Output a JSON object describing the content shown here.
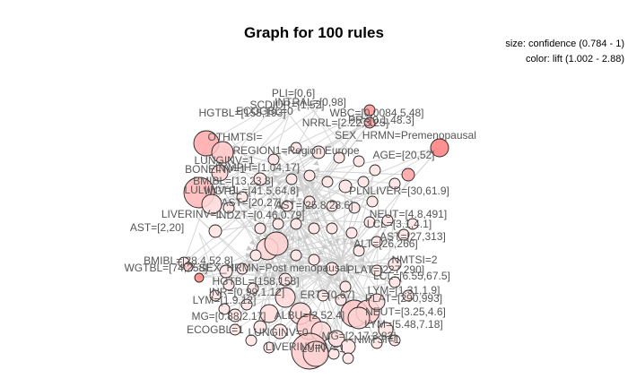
{
  "chart_data": {
    "type": "graph",
    "title": "Graph for 100 rules",
    "legend": {
      "size": "size: confidence (0.784 - 1)",
      "color": "color: lift (1.002 - 2.88)"
    },
    "items": [
      "PLI=[0,6]",
      "SCDIUR=[1,52]",
      "HGTBL=[158,193]",
      "INTRAL=[0,98]",
      "ECOGBL=0",
      "WBC=[0.0084,5.48]",
      "PR=[0.1,48.3]",
      "NRRL=[2.22,3.25]",
      "OTHMTSI=",
      "SEX_HRMN=Premenopausal",
      "REGION1=Region Europe",
      "LUNGINV=1",
      "BONEINV=1",
      "LYMPH=[1.04,17]",
      "AGE=[20,52]",
      "BMIBL=[13,23.8]",
      "LULIINV=1",
      "WGTBL=[41.5,64.8]",
      "PLNLIVER=[30,61.9]",
      "AST=[20,27]",
      "AST=[25.8,28.6]",
      "LIVERINV=1",
      "NEUT=[4.8,491]",
      "INDZT=[0.46,0.79]",
      "LCL=[3.1,4.1]",
      "AST=[27,313]",
      "ALT=[26,266]",
      "AST=[2,20]",
      "NMTSI=2",
      "BMIBL=[28.4,52.8]",
      "WGTBL=[74,258]",
      "SEX_HRMN=Post menopausal",
      "PLAT=[227,290]",
      "HGTBL=[158,158]",
      "LCL=[6.55,67.5]",
      "INR=[0.99,1.12]",
      "LYM=[1.31,1.9]",
      "LYM=[1.9,12]",
      "ERT=[0,67]",
      "PLAT=[290,993]",
      "MG=[0.88,2.17]",
      "ALBU=[2,52.4]",
      "NEUT=[3.25,4.6]",
      "LYM=[5.48,7.18]",
      "ECOGBL=1",
      "LUNGINV=0",
      "MG=[2.17,3.82]",
      "NMTSI=1",
      "LIVERINV=0",
      "LUINV=1"
    ]
  }
}
